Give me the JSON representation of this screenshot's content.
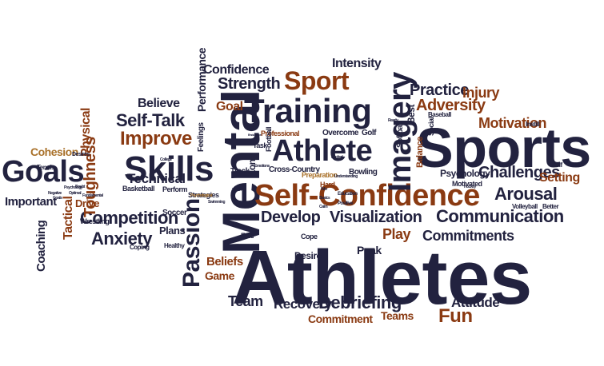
{
  "palette": {
    "navy": "#22223f",
    "blue": "#1f2a4f",
    "brown": "#8a3a12",
    "rust": "#9b4a1c",
    "gold": "#a9712a",
    "black": "#111118",
    "gray": "#4a4a4a"
  },
  "words": [
    {
      "t": "Athletes",
      "c": "navy"
    },
    {
      "t": "Sports",
      "c": "navy"
    },
    {
      "t": "Mental",
      "c": "navy"
    },
    {
      "t": "Self-Confidence",
      "c": "brown"
    },
    {
      "t": "Training",
      "c": "navy"
    },
    {
      "t": "Athlete",
      "c": "navy"
    },
    {
      "t": "Skills",
      "c": "navy"
    },
    {
      "t": "Goals",
      "c": "navy"
    },
    {
      "t": "Imagery",
      "c": "navy"
    },
    {
      "t": "Passion",
      "c": "navy"
    },
    {
      "t": "Sport",
      "c": "brown"
    },
    {
      "t": "Communication",
      "c": "navy"
    },
    {
      "t": "Competition",
      "c": "navy"
    },
    {
      "t": "Visualization",
      "c": "navy"
    },
    {
      "t": "Improve",
      "c": "brown"
    },
    {
      "t": "Self-Talk",
      "c": "navy"
    },
    {
      "t": "Anxiety",
      "c": "navy"
    },
    {
      "t": "Arousal",
      "c": "navy"
    },
    {
      "t": "Challenges",
      "c": "navy"
    },
    {
      "t": "Develop",
      "c": "navy"
    },
    {
      "t": "Debriefing",
      "c": "navy"
    },
    {
      "t": "Toughness",
      "c": "brown"
    },
    {
      "t": "Fun",
      "c": "brown"
    },
    {
      "t": "Strength",
      "c": "navy"
    },
    {
      "t": "Practice",
      "c": "navy"
    },
    {
      "t": "Adversity",
      "c": "brown"
    },
    {
      "t": "Motivation",
      "c": "brown"
    },
    {
      "t": "Injury",
      "c": "brown"
    },
    {
      "t": "Setting",
      "c": "brown"
    },
    {
      "t": "Technical",
      "c": "navy"
    },
    {
      "t": "Commitments",
      "c": "navy"
    },
    {
      "t": "Attitude",
      "c": "navy"
    },
    {
      "t": "Recovery",
      "c": "navy"
    },
    {
      "t": "Team",
      "c": "navy"
    },
    {
      "t": "Play",
      "c": "brown"
    },
    {
      "t": "Confidence",
      "c": "navy"
    },
    {
      "t": "Performance",
      "c": "navy"
    },
    {
      "t": "Believe",
      "c": "navy"
    },
    {
      "t": "Goal",
      "c": "brown"
    },
    {
      "t": "Intensity",
      "c": "navy"
    },
    {
      "t": "Physical",
      "c": "brown"
    },
    {
      "t": "Tactical",
      "c": "brown"
    },
    {
      "t": "Cohesion",
      "c": "gold"
    },
    {
      "t": "Important",
      "c": "navy"
    },
    {
      "t": "Drive",
      "c": "brown"
    },
    {
      "t": "Coaching",
      "c": "navy"
    },
    {
      "t": "Beliefs",
      "c": "brown"
    },
    {
      "t": "Game",
      "c": "brown"
    },
    {
      "t": "Commitment",
      "c": "brown"
    },
    {
      "t": "Teams",
      "c": "brown"
    },
    {
      "t": "Peak",
      "c": "navy"
    },
    {
      "t": "Psychology",
      "c": "navy"
    },
    {
      "t": "Plans",
      "c": "navy"
    },
    {
      "t": "Zone",
      "c": "navy"
    },
    {
      "t": "Cross-Country",
      "c": "navy"
    },
    {
      "t": "Bowling",
      "c": "navy"
    },
    {
      "t": "Basketball",
      "c": "navy"
    },
    {
      "t": "Soccer",
      "c": "navy"
    },
    {
      "t": "Wrestling",
      "c": "navy"
    },
    {
      "t": "Strategies",
      "c": "navy"
    },
    {
      "t": "Perform",
      "c": "navy"
    },
    {
      "t": "Coping",
      "c": "navy"
    },
    {
      "t": "Healthy",
      "c": "navy"
    },
    {
      "t": "Desire",
      "c": "navy"
    },
    {
      "t": "Fear",
      "c": "navy"
    },
    {
      "t": "Cope",
      "c": "navy"
    },
    {
      "t": "Track",
      "c": "navy"
    },
    {
      "t": "Task",
      "c": "navy"
    },
    {
      "t": "Feelings",
      "c": "navy"
    },
    {
      "t": "Professional",
      "c": "brown"
    },
    {
      "t": "Overcome",
      "c": "navy"
    },
    {
      "t": "Golf",
      "c": "navy"
    },
    {
      "t": "Softball",
      "c": "navy"
    },
    {
      "t": "Best",
      "c": "navy"
    },
    {
      "t": "Preparation",
      "c": "gold"
    },
    {
      "t": "Hard",
      "c": "brown"
    },
    {
      "t": "Motivated",
      "c": "navy"
    },
    {
      "t": "Volleyball",
      "c": "navy"
    },
    {
      "t": "Better",
      "c": "navy"
    },
    {
      "t": "Balance",
      "c": "brown"
    },
    {
      "t": "Baseball",
      "c": "navy"
    },
    {
      "t": "Instill",
      "c": "navy"
    },
    {
      "t": "Self",
      "c": "navy"
    },
    {
      "t": "Tennis",
      "c": "navy"
    },
    {
      "t": "Desires",
      "c": "navy"
    },
    {
      "t": "Football",
      "c": "navy"
    },
    {
      "t": "Social",
      "c": "navy"
    },
    {
      "t": "Education",
      "c": "navy"
    },
    {
      "t": "Positive",
      "c": "navy"
    },
    {
      "t": "Youth",
      "c": "navy"
    },
    {
      "t": "College",
      "c": "navy"
    },
    {
      "t": "Fundamental",
      "c": "navy"
    },
    {
      "t": "Optimal",
      "c": "navy"
    },
    {
      "t": "Goals",
      "c": "navy"
    },
    {
      "t": "Negative",
      "c": "navy"
    },
    {
      "t": "Emotions",
      "c": "navy"
    },
    {
      "t": "Psychological",
      "c": "gold"
    },
    {
      "t": "Endurance",
      "c": "navy"
    },
    {
      "t": "Excited",
      "c": "navy"
    },
    {
      "t": "Understanding",
      "c": "navy"
    },
    {
      "t": "Win",
      "c": "navy"
    },
    {
      "t": "Calm",
      "c": "navy"
    },
    {
      "t": "Basics",
      "c": "navy"
    },
    {
      "t": "Doubt",
      "c": "navy"
    },
    {
      "t": "Ready",
      "c": "navy"
    },
    {
      "t": "Psychology",
      "c": "navy"
    },
    {
      "t": "Swimming",
      "c": "navy"
    },
    {
      "t": "Hockey",
      "c": "navy"
    }
  ]
}
